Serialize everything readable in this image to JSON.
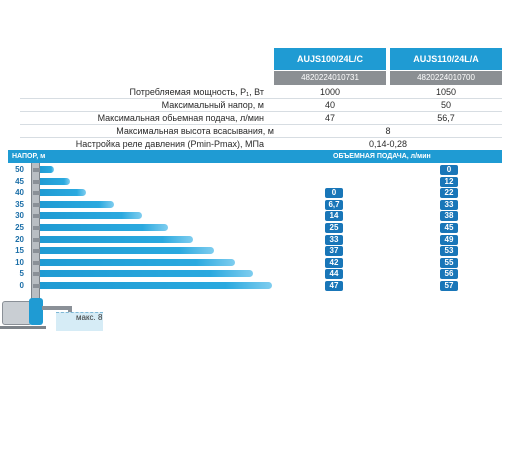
{
  "models": [
    {
      "name": "AUJS100/24L/C",
      "code": "4820224010731"
    },
    {
      "name": "AUJS110/24L/A",
      "code": "4820224010700"
    }
  ],
  "specs": [
    {
      "label": "Потребляемая мощность, P₁, Вт",
      "v1": "1000",
      "v2": "1050"
    },
    {
      "label": "Максимальный напор, м",
      "v1": "40",
      "v2": "50"
    },
    {
      "label": "Максимальная обьемная подача, л/мин",
      "v1": "47",
      "v2": "56,7"
    },
    {
      "label": "Максимальная высота всасывания, м",
      "shared": "8"
    },
    {
      "label": "Настройка реле давления (Pmin-Pmax), МПа",
      "shared": "0,14-0,28"
    }
  ],
  "flow_header": {
    "left": "НАПОР, м",
    "right": "ОБЪЕМНАЯ ПОДАЧА, л/мин"
  },
  "flow_rows": [
    {
      "head": "50",
      "q1": "",
      "q2": "0",
      "reach": 0.06
    },
    {
      "head": "45",
      "q1": "",
      "q2": "12",
      "reach": 0.13
    },
    {
      "head": "40",
      "q1": "0",
      "q2": "22",
      "reach": 0.2
    },
    {
      "head": "35",
      "q1": "6,7",
      "q2": "33",
      "reach": 0.32
    },
    {
      "head": "30",
      "q1": "14",
      "q2": "38",
      "reach": 0.44
    },
    {
      "head": "25",
      "q1": "25",
      "q2": "45",
      "reach": 0.55
    },
    {
      "head": "20",
      "q1": "33",
      "q2": "49",
      "reach": 0.66
    },
    {
      "head": "15",
      "q1": "37",
      "q2": "53",
      "reach": 0.75
    },
    {
      "head": "10",
      "q1": "42",
      "q2": "55",
      "reach": 0.84
    },
    {
      "head": "5",
      "q1": "44",
      "q2": "56",
      "reach": 0.92
    },
    {
      "head": "0",
      "q1": "47",
      "q2": "57",
      "reach": 1.0
    }
  ],
  "suction_label": "макс. 8",
  "colors": {
    "accent": "#1f9bd3",
    "badge": "#1976b8",
    "code_bg": "#8b8f93"
  }
}
